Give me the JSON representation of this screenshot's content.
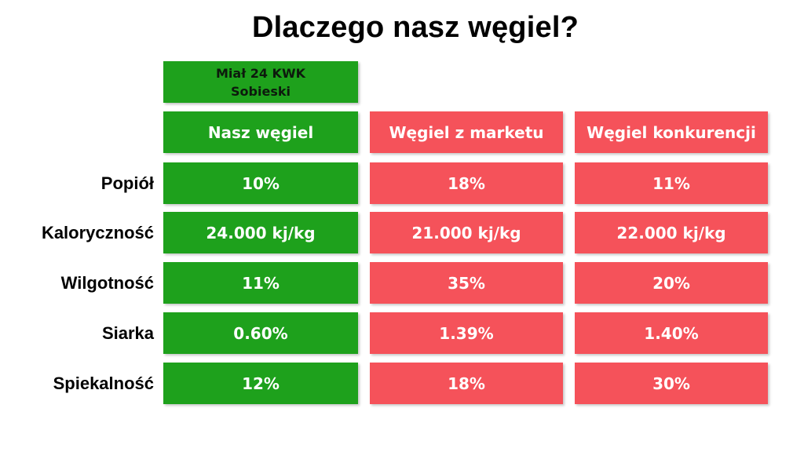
{
  "title": "Dlaczego nasz węgiel?",
  "subheader": "Miał 24 KWK\nSobieski",
  "columns": [
    "Nasz węgiel",
    "Węgiel z marketu",
    "Węgiel konkurencji"
  ],
  "rows": [
    {
      "label": "Popiół",
      "values": [
        "10%",
        "18%",
        "11%"
      ]
    },
    {
      "label": "Kaloryczność",
      "values": [
        "24.000 kj/kg",
        "21.000 kj/kg",
        "22.000 kj/kg"
      ]
    },
    {
      "label": "Wilgotność",
      "values": [
        "11%",
        "35%",
        "20%"
      ]
    },
    {
      "label": "Siarka",
      "values": [
        "0.60%",
        "1.39%",
        "1.40%"
      ]
    },
    {
      "label": "Spiekalność",
      "values": [
        "12%",
        "18%",
        "30%"
      ]
    }
  ],
  "colors": {
    "our_coal": "#1ea11c",
    "competitors": "#f5525a"
  }
}
